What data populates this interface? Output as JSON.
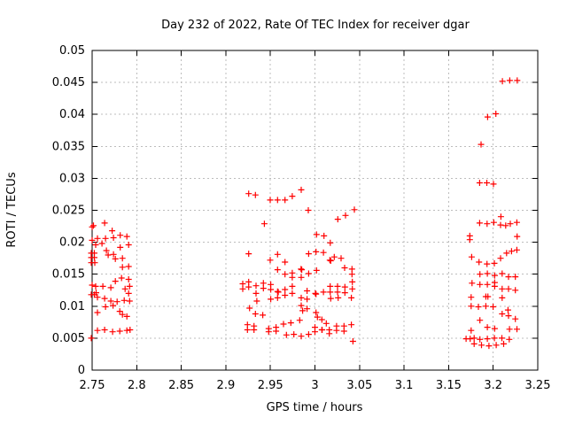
{
  "chart_data": {
    "type": "scatter",
    "title": "Day 232 of 2022, Rate Of TEC Index for receiver dgar",
    "xlabel": "GPS time / hours",
    "ylabel": "ROTI / TECUs",
    "xlim": [
      2.75,
      3.25
    ],
    "ylim": [
      0,
      0.05
    ],
    "grid": true,
    "legend": "none",
    "marker": "plus",
    "colors": {
      "marker": "#ff0000",
      "grid": "#bdbdbd",
      "border": "#000000",
      "background": "#ffffff",
      "text": "#000000"
    },
    "xticks": [
      {
        "value": 2.75,
        "label": "2.75"
      },
      {
        "value": 2.8,
        "label": "2.8"
      },
      {
        "value": 2.85,
        "label": "2.85"
      },
      {
        "value": 2.9,
        "label": "2.9"
      },
      {
        "value": 2.95,
        "label": "2.95"
      },
      {
        "value": 3.0,
        "label": "3"
      },
      {
        "value": 3.05,
        "label": "3.05"
      },
      {
        "value": 3.1,
        "label": "3.1"
      },
      {
        "value": 3.15,
        "label": "3.15"
      },
      {
        "value": 3.2,
        "label": "3.2"
      },
      {
        "value": 3.25,
        "label": "3.25"
      }
    ],
    "yticks": [
      {
        "value": 0,
        "label": "0"
      },
      {
        "value": 0.005,
        "label": "0.005"
      },
      {
        "value": 0.01,
        "label": "0.01"
      },
      {
        "value": 0.015,
        "label": "0.015"
      },
      {
        "value": 0.02,
        "label": "0.02"
      },
      {
        "value": 0.025,
        "label": "0.025"
      },
      {
        "value": 0.03,
        "label": "0.03"
      },
      {
        "value": 0.035,
        "label": "0.035"
      },
      {
        "value": 0.04,
        "label": "0.04"
      },
      {
        "value": 0.045,
        "label": "0.045"
      },
      {
        "value": 0.05,
        "label": "0.05"
      }
    ],
    "series": [
      {
        "name": "ROTI",
        "points": [
          [
            2.75,
            0.0224
          ],
          [
            2.7515,
            0.0226
          ],
          [
            2.764,
            0.023
          ],
          [
            2.7725,
            0.0218
          ],
          [
            2.75,
            0.0203
          ],
          [
            2.756,
            0.0206
          ],
          [
            2.765,
            0.0206
          ],
          [
            2.774,
            0.0207
          ],
          [
            2.7815,
            0.0211
          ],
          [
            2.789,
            0.0209
          ],
          [
            2.754,
            0.0196
          ],
          [
            2.761,
            0.0198
          ],
          [
            2.7815,
            0.0192
          ],
          [
            2.791,
            0.0196
          ],
          [
            2.749,
            0.0183
          ],
          [
            2.749,
            0.0176
          ],
          [
            2.7525,
            0.0183
          ],
          [
            2.7525,
            0.0176
          ],
          [
            2.766,
            0.0187
          ],
          [
            2.768,
            0.018
          ],
          [
            2.774,
            0.0181
          ],
          [
            2.776,
            0.0174
          ],
          [
            2.784,
            0.0175
          ],
          [
            2.749,
            0.0168
          ],
          [
            2.753,
            0.0168
          ],
          [
            2.784,
            0.0161
          ],
          [
            2.791,
            0.0162
          ],
          [
            2.783,
            0.0144
          ],
          [
            2.791,
            0.0142
          ],
          [
            2.776,
            0.0139
          ],
          [
            2.75,
            0.0133
          ],
          [
            2.754,
            0.0131
          ],
          [
            2.762,
            0.0131
          ],
          [
            2.771,
            0.0129
          ],
          [
            2.787,
            0.0127
          ],
          [
            2.792,
            0.0131
          ],
          [
            2.749,
            0.0118
          ],
          [
            2.7525,
            0.0118
          ],
          [
            2.7545,
            0.0121
          ],
          [
            2.756,
            0.0114
          ],
          [
            2.764,
            0.0112
          ],
          [
            2.771,
            0.0108
          ],
          [
            2.7735,
            0.0101
          ],
          [
            2.778,
            0.0107
          ],
          [
            2.786,
            0.0109
          ],
          [
            2.792,
            0.0108
          ],
          [
            2.791,
            0.012
          ],
          [
            2.756,
            0.009
          ],
          [
            2.765,
            0.0099
          ],
          [
            2.781,
            0.0092
          ],
          [
            2.784,
            0.0087
          ],
          [
            2.789,
            0.0084
          ],
          [
            2.756,
            0.0062
          ],
          [
            2.764,
            0.0063
          ],
          [
            2.773,
            0.006
          ],
          [
            2.781,
            0.0061
          ],
          [
            2.789,
            0.0062
          ],
          [
            2.7925,
            0.0063
          ],
          [
            2.749,
            0.005
          ],
          [
            2.9256,
            0.0276
          ],
          [
            2.9332,
            0.0274
          ],
          [
            2.9498,
            0.0266
          ],
          [
            2.9581,
            0.0266
          ],
          [
            2.9664,
            0.0266
          ],
          [
            2.9746,
            0.0272
          ],
          [
            2.9846,
            0.0282
          ],
          [
            2.9925,
            0.025
          ],
          [
            2.9432,
            0.0229
          ],
          [
            3.0018,
            0.0212
          ],
          [
            3.0101,
            0.021
          ],
          [
            3.0256,
            0.0236
          ],
          [
            3.0343,
            0.0242
          ],
          [
            3.0442,
            0.0251
          ],
          [
            3.0172,
            0.0199
          ],
          [
            2.9256,
            0.0182
          ],
          [
            2.9498,
            0.0172
          ],
          [
            2.9581,
            0.0181
          ],
          [
            2.9664,
            0.0169
          ],
          [
            2.9929,
            0.0182
          ],
          [
            3.0012,
            0.0185
          ],
          [
            3.0095,
            0.0184
          ],
          [
            3.0167,
            0.0172
          ],
          [
            3.0177,
            0.0171
          ],
          [
            3.0217,
            0.0177
          ],
          [
            3.0293,
            0.0175
          ],
          [
            2.9581,
            0.0157
          ],
          [
            2.9664,
            0.015
          ],
          [
            2.9746,
            0.0152
          ],
          [
            2.9746,
            0.0145
          ],
          [
            2.9844,
            0.0158
          ],
          [
            2.9852,
            0.0157
          ],
          [
            2.9846,
            0.0145
          ],
          [
            2.9929,
            0.0151
          ],
          [
            3.0018,
            0.0156
          ],
          [
            3.0333,
            0.016
          ],
          [
            3.0416,
            0.0158
          ],
          [
            3.0416,
            0.015
          ],
          [
            2.919,
            0.0135
          ],
          [
            2.919,
            0.0127
          ],
          [
            2.9256,
            0.0138
          ],
          [
            2.9256,
            0.013
          ],
          [
            2.9339,
            0.0132
          ],
          [
            2.9339,
            0.012
          ],
          [
            2.9421,
            0.0136
          ],
          [
            2.9421,
            0.0128
          ],
          [
            2.9504,
            0.0134
          ],
          [
            2.9504,
            0.0126
          ],
          [
            2.9581,
            0.0123
          ],
          [
            2.9588,
            0.0122
          ],
          [
            2.9664,
            0.0126
          ],
          [
            2.9664,
            0.0117
          ],
          [
            2.9746,
            0.0131
          ],
          [
            2.9746,
            0.012
          ],
          [
            2.9846,
            0.0113
          ],
          [
            2.9912,
            0.0124
          ],
          [
            3.0005,
            0.012
          ],
          [
            3.0012,
            0.0119
          ],
          [
            3.0095,
            0.0122
          ],
          [
            3.0171,
            0.0131
          ],
          [
            3.0171,
            0.0122
          ],
          [
            3.0253,
            0.0131
          ],
          [
            3.0253,
            0.0122
          ],
          [
            3.0336,
            0.013
          ],
          [
            3.0336,
            0.0121
          ],
          [
            3.0419,
            0.0138
          ],
          [
            3.0419,
            0.0127
          ],
          [
            2.9504,
            0.0111
          ],
          [
            2.9581,
            0.0113
          ],
          [
            2.9912,
            0.0111
          ],
          [
            3.0177,
            0.0112
          ],
          [
            3.026,
            0.0113
          ],
          [
            3.0409,
            0.0113
          ],
          [
            2.9266,
            0.0097
          ],
          [
            2.9332,
            0.0088
          ],
          [
            2.9415,
            0.0086
          ],
          [
            2.9348,
            0.0108
          ],
          [
            2.9243,
            0.0071
          ],
          [
            2.9243,
            0.0063
          ],
          [
            2.9316,
            0.0069
          ],
          [
            2.9316,
            0.0063
          ],
          [
            2.9481,
            0.0065
          ],
          [
            2.9481,
            0.006
          ],
          [
            2.9564,
            0.0067
          ],
          [
            2.9564,
            0.0061
          ],
          [
            2.9647,
            0.0072
          ],
          [
            2.968,
            0.0055
          ],
          [
            2.973,
            0.0074
          ],
          [
            2.9763,
            0.0056
          ],
          [
            2.9829,
            0.0078
          ],
          [
            2.9846,
            0.0101
          ],
          [
            2.9862,
            0.0093
          ],
          [
            2.9912,
            0.0096
          ],
          [
            2.9929,
            0.0056
          ],
          [
            2.9846,
            0.0053
          ],
          [
            3.0012,
            0.009
          ],
          [
            3.0028,
            0.0083
          ],
          [
            3.0078,
            0.0079
          ],
          [
            3.0127,
            0.0073
          ],
          [
            3.0,
            0.0067
          ],
          [
            3.0,
            0.006
          ],
          [
            3.0078,
            0.0063
          ],
          [
            3.0081,
            0.0063
          ],
          [
            3.0161,
            0.0063
          ],
          [
            3.0161,
            0.0057
          ],
          [
            3.0243,
            0.0069
          ],
          [
            3.0243,
            0.0062
          ],
          [
            3.0326,
            0.0069
          ],
          [
            3.0326,
            0.0061
          ],
          [
            3.0409,
            0.0071
          ],
          [
            3.0426,
            0.0045
          ],
          [
            3.2103,
            0.0452
          ],
          [
            3.2186,
            0.0453
          ],
          [
            3.2269,
            0.0453
          ],
          [
            3.203,
            0.0401
          ],
          [
            3.1937,
            0.0396
          ],
          [
            3.1864,
            0.0353
          ],
          [
            3.1848,
            0.0293
          ],
          [
            3.1928,
            0.0293
          ],
          [
            3.2003,
            0.0291
          ],
          [
            3.2086,
            0.024
          ],
          [
            3.1848,
            0.023
          ],
          [
            3.1931,
            0.0229
          ],
          [
            3.2007,
            0.0231
          ],
          [
            3.2083,
            0.0227
          ],
          [
            3.214,
            0.0226
          ],
          [
            3.2192,
            0.0229
          ],
          [
            3.2265,
            0.0231
          ],
          [
            3.1738,
            0.021
          ],
          [
            3.1738,
            0.0204
          ],
          [
            3.2268,
            0.0209
          ],
          [
            3.1758,
            0.0177
          ],
          [
            3.1841,
            0.0169
          ],
          [
            3.193,
            0.0166
          ],
          [
            3.2013,
            0.0167
          ],
          [
            3.2083,
            0.0175
          ],
          [
            3.215,
            0.0183
          ],
          [
            3.2206,
            0.0186
          ],
          [
            3.2265,
            0.0188
          ],
          [
            3.1851,
            0.015
          ],
          [
            3.1934,
            0.0151
          ],
          [
            3.2017,
            0.0148
          ],
          [
            3.21,
            0.0151
          ],
          [
            3.2172,
            0.0146
          ],
          [
            3.2249,
            0.0146
          ],
          [
            3.1762,
            0.0136
          ],
          [
            3.1851,
            0.0134
          ],
          [
            3.1934,
            0.0134
          ],
          [
            3.2017,
            0.0137
          ],
          [
            3.2017,
            0.0131
          ],
          [
            3.21,
            0.0127
          ],
          [
            3.2172,
            0.0127
          ],
          [
            3.2249,
            0.0125
          ],
          [
            3.1752,
            0.0114
          ],
          [
            3.1917,
            0.0115
          ],
          [
            3.194,
            0.0115
          ],
          [
            3.21,
            0.0113
          ],
          [
            3.1752,
            0.01
          ],
          [
            3.1834,
            0.0099
          ],
          [
            3.1917,
            0.01
          ],
          [
            3.1999,
            0.0099
          ],
          [
            3.2166,
            0.0094
          ],
          [
            3.21,
            0.0088
          ],
          [
            3.2172,
            0.0085
          ],
          [
            3.2249,
            0.008
          ],
          [
            3.1851,
            0.0078
          ],
          [
            3.1934,
            0.0067
          ],
          [
            3.2017,
            0.0065
          ],
          [
            3.1752,
            0.0062
          ],
          [
            3.2183,
            0.0064
          ],
          [
            3.2266,
            0.0064
          ],
          [
            3.1696,
            0.0049
          ],
          [
            3.1742,
            0.0049
          ],
          [
            3.1786,
            0.005
          ],
          [
            3.1851,
            0.0048
          ],
          [
            3.1934,
            0.0049
          ],
          [
            3.2014,
            0.005
          ],
          [
            3.2097,
            0.005
          ],
          [
            3.218,
            0.0048
          ],
          [
            3.1786,
            0.0041
          ],
          [
            3.1869,
            0.0039
          ],
          [
            3.1952,
            0.0038
          ],
          [
            3.2034,
            0.0039
          ],
          [
            3.2117,
            0.0041
          ]
        ]
      }
    ]
  }
}
